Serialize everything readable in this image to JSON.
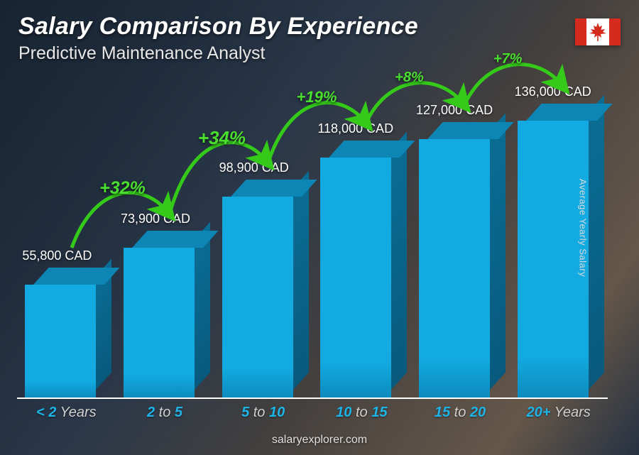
{
  "title": "Salary Comparison By Experience",
  "subtitle": "Predictive Maintenance Analyst",
  "side_label": "Average Yearly Salary",
  "footer": "salaryexplorer.com",
  "flag": {
    "country": "Canada",
    "red": "#d52b1e",
    "white": "#ffffff"
  },
  "colors": {
    "bar_front": "#12aae0",
    "bar_top": "#0e86b5",
    "bar_side": "#0b6d94",
    "pct_green": "#4ade2e",
    "arrow_green": "#35c91a",
    "value_text": "#ffffff",
    "xlabel_highlight": "#1db4e8",
    "xlabel_dim": "#d0d0d0",
    "baseline": "#ffffff"
  },
  "chart": {
    "type": "bar-3d",
    "ymax": 160000,
    "bars": [
      {
        "label_pre": "< 2",
        "label_post": " Years",
        "value": 55800,
        "value_text": "55,800 CAD"
      },
      {
        "label_pre": "2",
        "label_mid": " to ",
        "label_post": "5",
        "value": 73900,
        "value_text": "73,900 CAD",
        "pct": "+32%",
        "pct_size": 25
      },
      {
        "label_pre": "5",
        "label_mid": " to ",
        "label_post": "10",
        "value": 98900,
        "value_text": "98,900 CAD",
        "pct": "+34%",
        "pct_size": 26
      },
      {
        "label_pre": "10",
        "label_mid": " to ",
        "label_post": "15",
        "value": 118000,
        "value_text": "118,000 CAD",
        "pct": "+19%",
        "pct_size": 22
      },
      {
        "label_pre": "15",
        "label_mid": " to ",
        "label_post": "20",
        "value": 127000,
        "value_text": "127,000 CAD",
        "pct": "+8%",
        "pct_size": 20
      },
      {
        "label_pre": "20+",
        "label_post": " Years",
        "value": 136000,
        "value_text": "136,000 CAD",
        "pct": "+7%",
        "pct_size": 20
      }
    ]
  }
}
